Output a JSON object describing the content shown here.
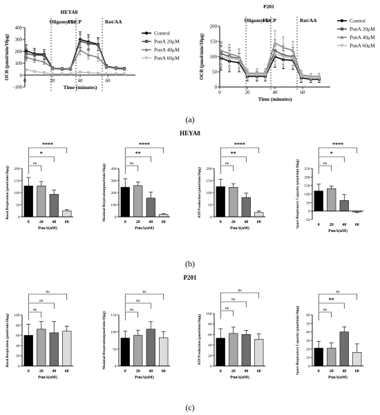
{
  "panel_labels": {
    "a": "(a)",
    "b": "(b)",
    "c": "(c)"
  },
  "section_titles": {
    "b": "HEYA8",
    "c": "P201"
  },
  "colors": {
    "control": "#000000",
    "pun20": "#555555",
    "pun40": "#808080",
    "pun60": "#bcbcbc",
    "bar_fills": [
      "#000000",
      "#a6a6a6",
      "#6e6e6e",
      "#dcdcdc"
    ]
  },
  "chart_data": [
    {
      "id": "ocr-heya8",
      "type": "line",
      "title": "HEYA8",
      "xlabel": "Time (minutes)",
      "ylabel": "OCR (pmol/min/10μg)",
      "xlim": [
        0,
        80
      ],
      "ylim": [
        -100,
        400
      ],
      "xticks": [
        0,
        20,
        40,
        60
      ],
      "yticks": [
        -100,
        0,
        100,
        200,
        300,
        400
      ],
      "injections": [
        {
          "label": "Oligomycin",
          "x": 19
        },
        {
          "label": "FCCP",
          "x": 37
        },
        {
          "label": "Rot/AA",
          "x": 56
        }
      ],
      "x": [
        1,
        7,
        14,
        20,
        27,
        33,
        40,
        46,
        53,
        59,
        66,
        72
      ],
      "series": [
        {
          "name": "Control",
          "key": "control",
          "marker": "circle",
          "values": [
            205,
            180,
            175,
            60,
            55,
            55,
            300,
            280,
            260,
            75,
            60,
            55
          ],
          "errors": [
            50,
            45,
            40,
            12,
            10,
            10,
            65,
            60,
            55,
            15,
            10,
            10
          ]
        },
        {
          "name": "PunA 20μM",
          "key": "pun20",
          "marker": "square",
          "values": [
            180,
            170,
            165,
            55,
            50,
            50,
            285,
            265,
            255,
            70,
            55,
            50
          ],
          "errors": [
            45,
            40,
            35,
            10,
            10,
            10,
            60,
            55,
            50,
            15,
            10,
            10
          ]
        },
        {
          "name": "PunA 40μM",
          "key": "pun40",
          "marker": "triangle",
          "values": [
            150,
            130,
            110,
            60,
            55,
            55,
            210,
            170,
            150,
            70,
            55,
            50
          ],
          "errors": [
            30,
            25,
            20,
            10,
            10,
            10,
            40,
            35,
            30,
            10,
            10,
            10
          ]
        },
        {
          "name": "PunA 60μM",
          "key": "pun60",
          "marker": "triangle-down",
          "values": [
            45,
            30,
            20,
            10,
            10,
            10,
            25,
            20,
            15,
            10,
            10,
            10
          ],
          "errors": [
            10,
            8,
            8,
            5,
            5,
            5,
            8,
            8,
            5,
            5,
            5,
            5
          ]
        }
      ]
    },
    {
      "id": "ocr-p201",
      "type": "line",
      "title": "P201",
      "xlabel": "Time (minutes)",
      "ylabel": "OCR (pmol/min/10μg)",
      "xlim": [
        0,
        80
      ],
      "ylim": [
        0,
        200
      ],
      "xticks": [
        0,
        20,
        40,
        60
      ],
      "yticks": [
        0,
        50,
        100,
        150,
        200
      ],
      "injections": [
        {
          "label": "Oligomycin",
          "x": 19
        },
        {
          "label": "FCCP",
          "x": 37
        },
        {
          "label": "Rot/AA",
          "x": 56
        }
      ],
      "legend": [
        "Control",
        "PunA 20μM",
        "PunA 40μM",
        "PunA 60μM"
      ],
      "x": [
        1,
        7,
        14,
        20,
        27,
        33,
        40,
        46,
        53,
        59,
        66,
        72
      ],
      "series": [
        {
          "name": "Control",
          "key": "control",
          "marker": "circle",
          "values": [
            95,
            85,
            80,
            35,
            35,
            35,
            100,
            90,
            88,
            30,
            25,
            25
          ],
          "errors": [
            40,
            35,
            30,
            15,
            15,
            15,
            35,
            30,
            30,
            15,
            10,
            10
          ]
        },
        {
          "name": "PunA 20μM",
          "key": "pun20",
          "marker": "square",
          "values": [
            110,
            100,
            95,
            40,
            40,
            40,
            120,
            105,
            100,
            35,
            30,
            30
          ],
          "errors": [
            35,
            30,
            30,
            15,
            15,
            15,
            35,
            30,
            30,
            15,
            10,
            10
          ]
        },
        {
          "name": "PunA 40μM",
          "key": "pun40",
          "marker": "triangle",
          "values": [
            120,
            110,
            100,
            45,
            45,
            45,
            145,
            130,
            120,
            40,
            35,
            35
          ],
          "errors": [
            30,
            30,
            25,
            15,
            15,
            15,
            40,
            35,
            30,
            15,
            10,
            10
          ]
        },
        {
          "name": "PunA 60μM",
          "key": "pun60",
          "marker": "triangle-down",
          "values": [
            100,
            95,
            90,
            40,
            40,
            40,
            110,
            100,
            95,
            35,
            30,
            30
          ],
          "errors": [
            30,
            30,
            25,
            15,
            15,
            15,
            35,
            30,
            30,
            15,
            10,
            10
          ]
        }
      ]
    },
    {
      "id": "heya8-basal",
      "type": "bar",
      "ylabel": "Basal Respiration (pmol/min/10μg)",
      "xlabel": "PunA(uM)",
      "categories": [
        "0",
        "20",
        "40",
        "60"
      ],
      "values": [
        128,
        128,
        93,
        25
      ],
      "errors": [
        35,
        18,
        18,
        5
      ],
      "ylim": [
        0,
        200
      ],
      "yticks": [
        0,
        50,
        100,
        150,
        200
      ],
      "brackets": [
        {
          "to": 1,
          "label": "ns"
        },
        {
          "to": 2,
          "label": "*"
        },
        {
          "to": 3,
          "label": "****"
        }
      ]
    },
    {
      "id": "heya8-maximal",
      "type": "bar",
      "ylabel": "Maximal Respiration(pmol/min/10μg)",
      "xlabel": "PunA(uM)",
      "categories": [
        "0",
        "20",
        "40",
        "60"
      ],
      "values": [
        245,
        258,
        155,
        20
      ],
      "errors": [
        70,
        30,
        50,
        5
      ],
      "ylim": [
        0,
        400
      ],
      "yticks": [
        0,
        100,
        200,
        300,
        400
      ],
      "brackets": [
        {
          "to": 1,
          "label": "ns"
        },
        {
          "to": 2,
          "label": "**"
        },
        {
          "to": 3,
          "label": "****"
        }
      ]
    },
    {
      "id": "heya8-atp",
      "type": "bar",
      "ylabel": "ATP Production (pmol/min/10μg)",
      "xlabel": "PunA(uM)",
      "categories": [
        "0",
        "20",
        "40",
        "60"
      ],
      "values": [
        125,
        122,
        80,
        18
      ],
      "errors": [
        30,
        15,
        18,
        6
      ],
      "ylim": [
        0,
        200
      ],
      "yticks": [
        0,
        50,
        100,
        150,
        200
      ],
      "brackets": [
        {
          "to": 1,
          "label": "ns"
        },
        {
          "to": 2,
          "label": "**"
        },
        {
          "to": 3,
          "label": "****"
        }
      ]
    },
    {
      "id": "heya8-spare",
      "type": "bar",
      "ylabel": "Spare Respiratory Capacity (pmol/min/10μg)",
      "xlabel": "PunA(uM)",
      "categories": [
        "0",
        "20",
        "40",
        "60"
      ],
      "values": [
        118,
        132,
        62,
        -5
      ],
      "errors": [
        40,
        15,
        35,
        4
      ],
      "ylim": [
        -50,
        250
      ],
      "yticks": [
        -50,
        0,
        50,
        100,
        150,
        200,
        250
      ],
      "brackets": [
        {
          "to": 1,
          "label": "ns"
        },
        {
          "to": 2,
          "label": "*"
        },
        {
          "to": 3,
          "label": "****"
        }
      ]
    },
    {
      "id": "p201-basal",
      "type": "bar",
      "ylabel": "Basal Respiration (pmol/min/10μg)",
      "xlabel": "PunA(uM)",
      "categories": [
        "0",
        "20",
        "40",
        "60"
      ],
      "values": [
        60,
        72,
        65,
        68
      ],
      "errors": [
        22,
        15,
        22,
        10
      ],
      "ylim": [
        0,
        100
      ],
      "yticks": [
        0,
        20,
        40,
        60,
        80,
        100
      ],
      "brackets": [
        {
          "to": 1,
          "label": "ns"
        },
        {
          "to": 2,
          "label": "ns"
        },
        {
          "to": 3,
          "label": "ns"
        }
      ]
    },
    {
      "id": "p201-maximal",
      "type": "bar",
      "ylabel": "Maximal Respiration(pmol/min/10μg)",
      "xlabel": "PunA(uM)",
      "categories": [
        "0",
        "20",
        "40",
        "60"
      ],
      "values": [
        82,
        90,
        108,
        83
      ],
      "errors": [
        20,
        15,
        22,
        18
      ],
      "ylim": [
        0,
        150
      ],
      "yticks": [
        0,
        50,
        100,
        150
      ],
      "brackets": [
        {
          "to": 1,
          "label": "ns"
        },
        {
          "to": 2,
          "label": "ns"
        },
        {
          "to": 3,
          "label": "ns"
        }
      ]
    },
    {
      "id": "p201-atp",
      "type": "bar",
      "ylabel": "ATP Production (pmol/min/10μg)",
      "xlabel": "PunA(uM)",
      "categories": [
        "0",
        "20",
        "40",
        "60"
      ],
      "values": [
        53,
        62,
        60,
        51
      ],
      "errors": [
        18,
        12,
        8,
        10
      ],
      "ylim": [
        0,
        100
      ],
      "yticks": [
        0,
        20,
        40,
        60,
        80,
        100
      ],
      "brackets": [
        {
          "to": 1,
          "label": "ns"
        },
        {
          "to": 2,
          "label": "ns"
        },
        {
          "to": 3,
          "label": "ns"
        }
      ]
    },
    {
      "id": "p201-spare",
      "type": "bar",
      "ylabel": "Spare Respiratory Capacity (pmol/min/10μg)",
      "xlabel": "PunA(uM)",
      "categories": [
        "0",
        "20",
        "40",
        "60"
      ],
      "values": [
        21,
        21,
        40,
        16
      ],
      "errors": [
        8,
        6,
        6,
        10
      ],
      "ylim": [
        0,
        60
      ],
      "yticks": [
        0,
        10,
        20,
        30,
        40,
        50,
        60
      ],
      "brackets": [
        {
          "to": 1,
          "label": "ns"
        },
        {
          "to": 2,
          "label": "**"
        },
        {
          "to": 3,
          "label": "ns"
        }
      ]
    }
  ]
}
